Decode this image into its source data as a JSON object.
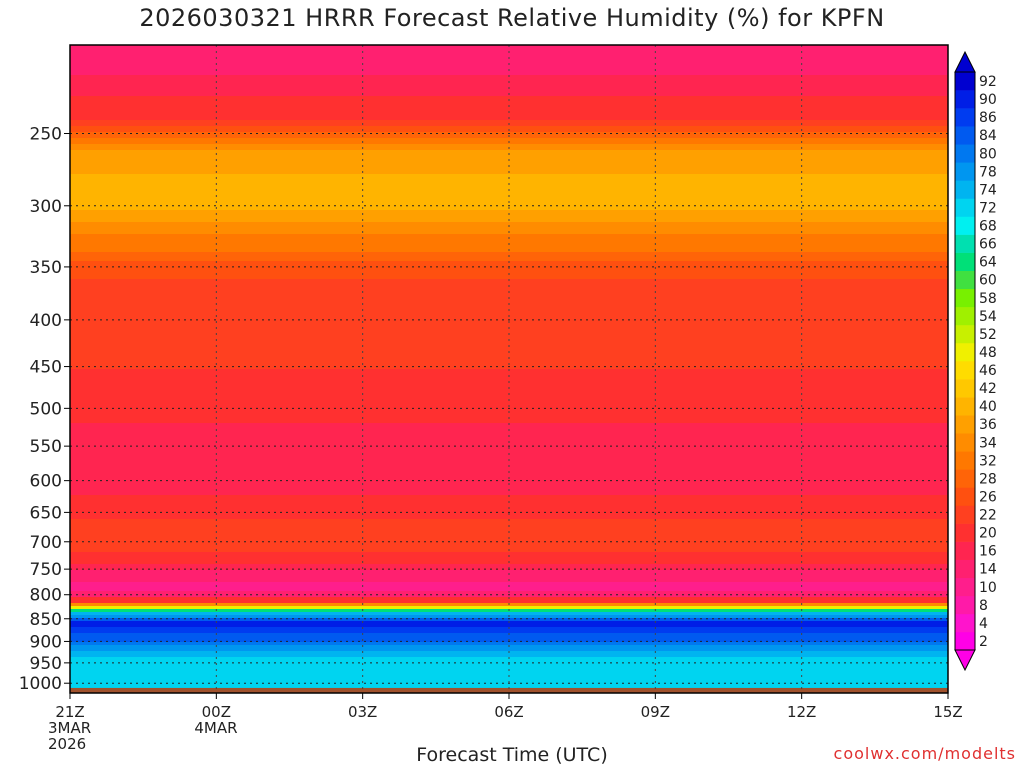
{
  "chart_data": {
    "type": "heatmap",
    "title": "2026030321 HRRR Forecast Relative Humidity (%) for KPFN",
    "xlabel": "Forecast Time (UTC)",
    "x_ticks": [
      {
        "hours": 0,
        "lines": [
          "21Z",
          "3MAR",
          "2026"
        ]
      },
      {
        "hours": 3,
        "lines": [
          "00Z",
          "4MAR"
        ]
      },
      {
        "hours": 6,
        "lines": [
          "03Z"
        ]
      },
      {
        "hours": 9,
        "lines": [
          "06Z"
        ]
      },
      {
        "hours": 12,
        "lines": [
          "09Z"
        ]
      },
      {
        "hours": 15,
        "lines": [
          "12Z"
        ]
      },
      {
        "hours": 18,
        "lines": [
          "15Z"
        ]
      }
    ],
    "xlim_hours": [
      0,
      18
    ],
    "y_axis": "pressure (hPa), log scale, inverted",
    "y_ticks": [
      250,
      300,
      350,
      400,
      450,
      500,
      550,
      600,
      650,
      700,
      750,
      800,
      850,
      900,
      950,
      1000
    ],
    "ylim": [
      200,
      1025
    ],
    "colorbar_levels": [
      2,
      4,
      8,
      10,
      14,
      16,
      20,
      22,
      26,
      28,
      32,
      34,
      36,
      40,
      42,
      46,
      48,
      52,
      54,
      58,
      60,
      64,
      66,
      68,
      72,
      74,
      78,
      80,
      84,
      86,
      90,
      92
    ],
    "colorbar_colors": [
      "#ff00e6",
      "#ff14cc",
      "#ff1aa8",
      "#ff1e8c",
      "#ff2070",
      "#ff2550",
      "#ff3030",
      "#ff4020",
      "#ff5010",
      "#ff6408",
      "#ff7800",
      "#ff8c00",
      "#ffa000",
      "#ffb400",
      "#ffc800",
      "#ffdc00",
      "#f0f000",
      "#c8f000",
      "#a0f000",
      "#78f000",
      "#40e040",
      "#00e078",
      "#00e0b0",
      "#00f0f0",
      "#00d4f0",
      "#00b4f0",
      "#0096f0",
      "#0078f0",
      "#005af0",
      "#003cf0",
      "#001ee6",
      "#0000d0"
    ],
    "grid": "dotted",
    "profiles": [
      {
        "p": 215,
        "rh": 14
      },
      {
        "p": 240,
        "rh": 18
      },
      {
        "p": 260,
        "rh": 34
      },
      {
        "p": 295,
        "rh": 38
      },
      {
        "p": 330,
        "rh": 30
      },
      {
        "p": 360,
        "rh": 22
      },
      {
        "p": 420,
        "rh": 22
      },
      {
        "p": 470,
        "rh": 19
      },
      {
        "p": 520,
        "rh": 16
      },
      {
        "p": 600,
        "rh": 14
      },
      {
        "p": 660,
        "rh": 20
      },
      {
        "p": 710,
        "rh": 22
      },
      {
        "p": 750,
        "rh": 14
      },
      {
        "p": 790,
        "rh": 8
      },
      {
        "p": 815,
        "rh": 20
      },
      {
        "p": 835,
        "rh": 70
      },
      {
        "p": 860,
        "rh": 88
      },
      {
        "p": 900,
        "rh": 80
      },
      {
        "p": 950,
        "rh": 68
      },
      {
        "p": 1000,
        "rh": 70
      }
    ],
    "ground_color": "#a0522d"
  },
  "credit": "coolwx.com/modelts"
}
